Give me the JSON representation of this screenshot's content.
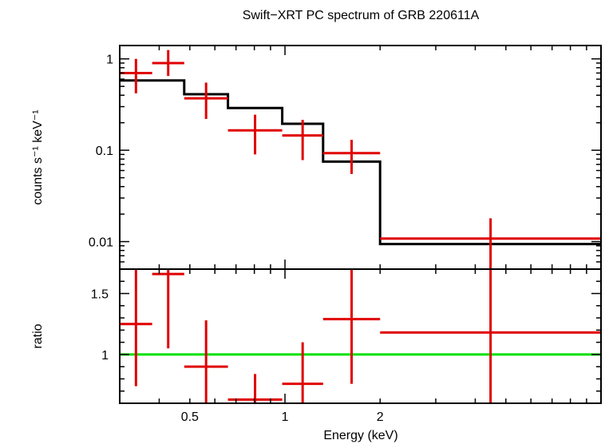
{
  "title": "Swift−XRT PC spectrum of GRB 220611A",
  "colors": {
    "data": "#e00000",
    "model": "#000000",
    "unity": "#00e000",
    "axis": "#000000"
  },
  "chart_data": [
    {
      "type": "line",
      "panel": "spectrum",
      "ylabel": "counts s⁻¹ keV⁻¹",
      "yscale": "log",
      "xscale": "log",
      "xlim": [
        0.3,
        10
      ],
      "ylim": [
        0.005,
        1.4
      ],
      "yticks": [
        {
          "value": 1,
          "label": "1"
        },
        {
          "value": 0.1,
          "label": "0.1"
        },
        {
          "value": 0.01,
          "label": "0.01"
        }
      ],
      "data_points": [
        {
          "x_lo": 0.3,
          "x_hi": 0.38,
          "y": 0.7,
          "y_lo": 0.42,
          "y_hi": 1.0
        },
        {
          "x_lo": 0.38,
          "x_hi": 0.48,
          "y": 0.9,
          "y_lo": 0.65,
          "y_hi": 1.25
        },
        {
          "x_lo": 0.48,
          "x_hi": 0.66,
          "y": 0.37,
          "y_lo": 0.22,
          "y_hi": 0.55
        },
        {
          "x_lo": 0.66,
          "x_hi": 0.98,
          "y": 0.165,
          "y_lo": 0.09,
          "y_hi": 0.245
        },
        {
          "x_lo": 0.98,
          "x_hi": 1.32,
          "y": 0.145,
          "y_lo": 0.078,
          "y_hi": 0.215
        },
        {
          "x_lo": 1.32,
          "x_hi": 2.0,
          "y": 0.093,
          "y_lo": 0.055,
          "y_hi": 0.13
        },
        {
          "x_lo": 2.0,
          "x_hi": 10.0,
          "y": 0.0108,
          "y_lo": 0.005,
          "y_hi": 0.018
        }
      ],
      "model_steps": [
        {
          "x_lo": 0.3,
          "x_hi": 0.48,
          "y": 0.58
        },
        {
          "x_lo": 0.48,
          "x_hi": 0.66,
          "y": 0.41
        },
        {
          "x_lo": 0.66,
          "x_hi": 0.98,
          "y": 0.29
        },
        {
          "x_lo": 0.98,
          "x_hi": 1.32,
          "y": 0.195
        },
        {
          "x_lo": 1.32,
          "x_hi": 2.0,
          "y": 0.075
        },
        {
          "x_lo": 2.0,
          "x_hi": 10.0,
          "y": 0.0094
        }
      ]
    },
    {
      "type": "scatter",
      "panel": "ratio",
      "ylabel": "ratio",
      "xlabel": "Energy (keV)",
      "xscale": "log",
      "xlim": [
        0.3,
        10
      ],
      "ylim": [
        0.6,
        1.7
      ],
      "yticks": [
        {
          "value": 1.5,
          "label": "1.5"
        },
        {
          "value": 1,
          "label": "1"
        }
      ],
      "xticks": [
        {
          "value": 0.5,
          "label": "0.5"
        },
        {
          "value": 1,
          "label": "1"
        },
        {
          "value": 2,
          "label": "2"
        }
      ],
      "unity_line": 1,
      "data_points": [
        {
          "x_lo": 0.3,
          "x_hi": 0.38,
          "y": 1.25,
          "y_lo": 0.74,
          "y_hi": 1.7
        },
        {
          "x_lo": 0.38,
          "x_hi": 0.48,
          "y": 1.66,
          "y_lo": 1.05,
          "y_hi": 1.7
        },
        {
          "x_lo": 0.48,
          "x_hi": 0.66,
          "y": 0.9,
          "y_lo": 0.6,
          "y_hi": 1.28
        },
        {
          "x_lo": 0.66,
          "x_hi": 0.98,
          "y": 0.63,
          "y_lo": 0.6,
          "y_hi": 0.84
        },
        {
          "x_lo": 0.98,
          "x_hi": 1.32,
          "y": 0.76,
          "y_lo": 0.6,
          "y_hi": 1.1
        },
        {
          "x_lo": 1.32,
          "x_hi": 2.0,
          "y": 1.29,
          "y_lo": 0.76,
          "y_hi": 1.7
        },
        {
          "x_lo": 2.0,
          "x_hi": 10.0,
          "y": 1.18,
          "y_lo": 0.6,
          "y_hi": 1.7
        }
      ]
    }
  ]
}
